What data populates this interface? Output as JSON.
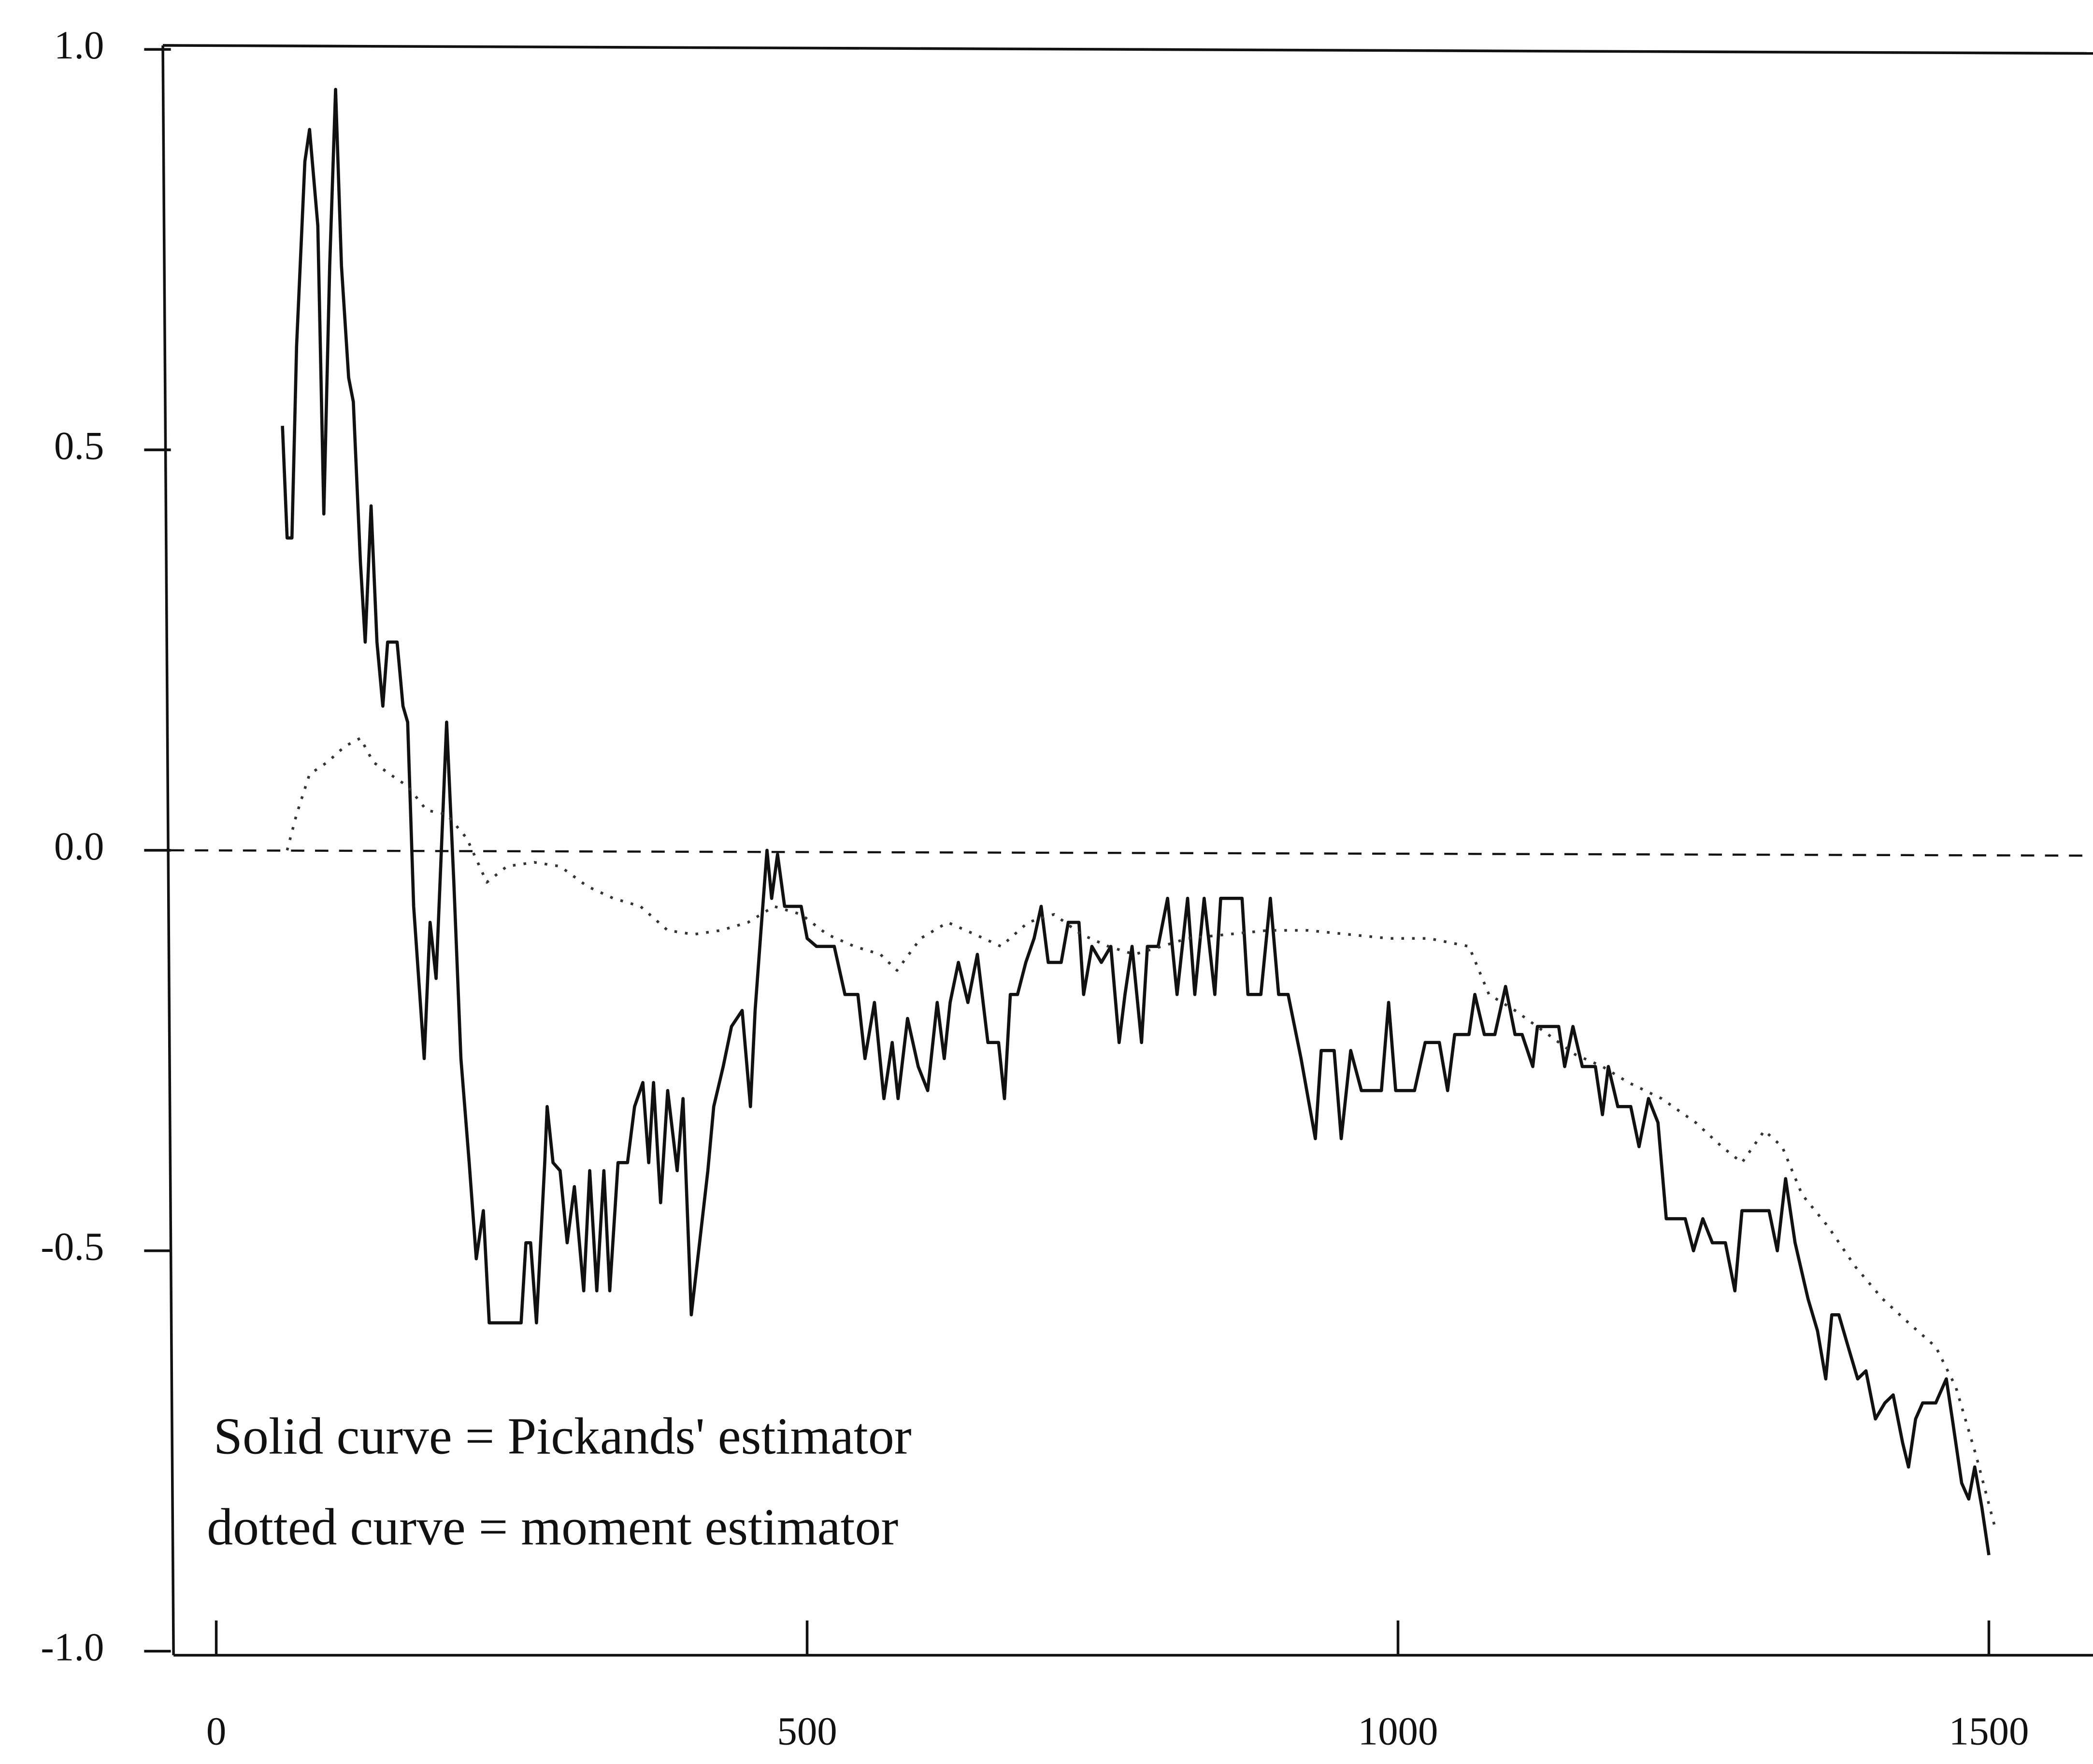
{
  "chart_data": {
    "type": "line",
    "xlim": [
      -45,
      1590
    ],
    "ylim": [
      -1,
      1
    ],
    "xticks": [
      0,
      500,
      1000,
      1500
    ],
    "yticks": [
      {
        "value": -1,
        "label": "-1.0"
      },
      -0.5,
      {
        "value": 0,
        "label": "0.0"
      },
      0.5,
      {
        "value": 1,
        "label": "1.0"
      }
    ],
    "reference_line": {
      "y": 0,
      "style": "dashed"
    },
    "annotations": [
      "Solid curve = Pickands' estimator",
      "dotted curve = moment estimator"
    ],
    "series": [
      {
        "color": "#111111",
        "style": "solid",
        "x": [
          56,
          60,
          64,
          68,
          75,
          79,
          86,
          91,
          96,
          101,
          106,
          112,
          116,
          122,
          126,
          131,
          136,
          141,
          145,
          153,
          158,
          162,
          167,
          176,
          181,
          186,
          195,
          201,
          207,
          214,
          220,
          226,
          231,
          258,
          262,
          266,
          271,
          278,
          280,
          285,
          291,
          297,
          303,
          311,
          316,
          322,
          328,
          333,
          340,
          348,
          354,
          361,
          366,
          370,
          376,
          382,
          390,
          395,
          402,
          409,
          416,
          421,
          429,
          436,
          445,
          452,
          456,
          461,
          466,
          470,
          475,
          481,
          495,
          500,
          508,
          523,
          532,
          543,
          549,
          557,
          565,
          572,
          577,
          585,
          594,
          602,
          610,
          616,
          621,
          628,
          636,
          644,
          653,
          662,
          667,
          672,
          678,
          685,
          692,
          698,
          704,
          715,
          721,
          730,
          734,
          741,
          749,
          757,
          764,
          769,
          775,
          783,
          788,
          797,
          805,
          813,
          822,
          828,
          836,
          845,
          850,
          868,
          873,
          884,
          892,
          899,
          907,
          918,
          930,
          935,
          946,
          952,
          960,
          969,
          986,
          992,
          998,
          1014,
          1023,
          1035,
          1042,
          1048,
          1060,
          1065,
          1073,
          1082,
          1091,
          1099,
          1105,
          1114,
          1118,
          1136,
          1141,
          1148,
          1156,
          1167,
          1173,
          1178,
          1186,
          1197,
          1204,
          1212,
          1220,
          1227,
          1243,
          1250,
          1258,
          1266,
          1277,
          1285,
          1291,
          1314,
          1321,
          1328,
          1336,
          1347,
          1355,
          1362,
          1367,
          1373,
          1381,
          1389,
          1396,
          1404,
          1412,
          1419,
          1427,
          1432,
          1438,
          1444,
          1455,
          1464,
          1469,
          1477,
          1483,
          1488,
          1494,
          1500
        ],
        "values": [
          0.53,
          0.39,
          0.39,
          0.63,
          0.86,
          0.9,
          0.78,
          0.42,
          0.73,
          0.95,
          0.73,
          0.59,
          0.56,
          0.36,
          0.26,
          0.43,
          0.26,
          0.18,
          0.26,
          0.26,
          0.18,
          0.16,
          -0.07,
          -0.26,
          -0.09,
          -0.16,
          0.16,
          -0.04,
          -0.26,
          -0.39,
          -0.51,
          -0.45,
          -0.59,
          -0.59,
          -0.49,
          -0.49,
          -0.59,
          -0.39,
          -0.32,
          -0.39,
          -0.4,
          -0.49,
          -0.42,
          -0.55,
          -0.4,
          -0.55,
          -0.4,
          -0.55,
          -0.39,
          -0.39,
          -0.32,
          -0.29,
          -0.39,
          -0.29,
          -0.44,
          -0.3,
          -0.4,
          -0.31,
          -0.58,
          -0.49,
          -0.4,
          -0.32,
          -0.27,
          -0.22,
          -0.2,
          -0.32,
          -0.2,
          -0.1,
          0.0,
          -0.06,
          -0.005,
          -0.07,
          -0.07,
          -0.11,
          -0.12,
          -0.12,
          -0.18,
          -0.18,
          -0.26,
          -0.19,
          -0.31,
          -0.24,
          -0.31,
          -0.21,
          -0.27,
          -0.3,
          -0.19,
          -0.26,
          -0.19,
          -0.14,
          -0.19,
          -0.13,
          -0.24,
          -0.24,
          -0.31,
          -0.18,
          -0.18,
          -0.14,
          -0.11,
          -0.07,
          -0.14,
          -0.14,
          -0.09,
          -0.09,
          -0.18,
          -0.12,
          -0.14,
          -0.12,
          -0.24,
          -0.18,
          -0.12,
          -0.24,
          -0.12,
          -0.12,
          -0.06,
          -0.18,
          -0.06,
          -0.18,
          -0.06,
          -0.18,
          -0.06,
          -0.06,
          -0.18,
          -0.18,
          -0.06,
          -0.18,
          -0.18,
          -0.26,
          -0.36,
          -0.25,
          -0.25,
          -0.36,
          -0.25,
          -0.3,
          -0.3,
          -0.19,
          -0.3,
          -0.3,
          -0.24,
          -0.24,
          -0.3,
          -0.23,
          -0.23,
          -0.18,
          -0.23,
          -0.23,
          -0.17,
          -0.23,
          -0.23,
          -0.27,
          -0.22,
          -0.22,
          -0.27,
          -0.22,
          -0.27,
          -0.27,
          -0.33,
          -0.27,
          -0.32,
          -0.32,
          -0.37,
          -0.31,
          -0.34,
          -0.46,
          -0.46,
          -0.5,
          -0.46,
          -0.49,
          -0.49,
          -0.55,
          -0.45,
          -0.45,
          -0.5,
          -0.41,
          -0.49,
          -0.56,
          -0.6,
          -0.66,
          -0.58,
          -0.58,
          -0.62,
          -0.66,
          -0.65,
          -0.71,
          -0.69,
          -0.68,
          -0.74,
          -0.77,
          -0.71,
          -0.69,
          -0.69,
          -0.66,
          -0.71,
          -0.79,
          -0.81,
          -0.77,
          -0.82,
          -0.88
        ]
      },
      {
        "color": "#333333",
        "style": "dotted",
        "x": [
          60,
          68,
          79,
          94,
          109,
          122,
          133,
          147,
          162,
          178,
          195,
          212,
          229,
          246,
          269,
          291,
          314,
          336,
          359,
          382,
          404,
          427,
          450,
          472,
          495,
          517,
          540,
          562,
          576,
          596,
          619,
          642,
          664,
          687,
          709,
          732,
          755,
          777,
          800,
          822,
          856,
          890,
          924,
          958,
          992,
          1026,
          1060,
          1077,
          1099,
          1127,
          1150,
          1173,
          1195,
          1223,
          1252,
          1274,
          1291,
          1310,
          1325,
          1342,
          1364,
          1387,
          1410,
          1432,
          1455,
          1472,
          1489,
          1506
        ],
        "values": [
          0.0,
          0.045,
          0.095,
          0.11,
          0.13,
          0.14,
          0.11,
          0.095,
          0.08,
          0.05,
          0.045,
          0.015,
          -0.04,
          -0.02,
          -0.015,
          -0.02,
          -0.045,
          -0.06,
          -0.07,
          -0.1,
          -0.105,
          -0.1,
          -0.09,
          -0.07,
          -0.08,
          -0.105,
          -0.12,
          -0.13,
          -0.15,
          -0.11,
          -0.09,
          -0.105,
          -0.12,
          -0.09,
          -0.08,
          -0.105,
          -0.12,
          -0.13,
          -0.12,
          -0.11,
          -0.105,
          -0.1,
          -0.1,
          -0.105,
          -0.11,
          -0.11,
          -0.12,
          -0.18,
          -0.2,
          -0.23,
          -0.255,
          -0.27,
          -0.29,
          -0.31,
          -0.34,
          -0.37,
          -0.39,
          -0.35,
          -0.37,
          -0.43,
          -0.47,
          -0.52,
          -0.56,
          -0.59,
          -0.62,
          -0.67,
          -0.755,
          -0.85
        ]
      }
    ]
  }
}
